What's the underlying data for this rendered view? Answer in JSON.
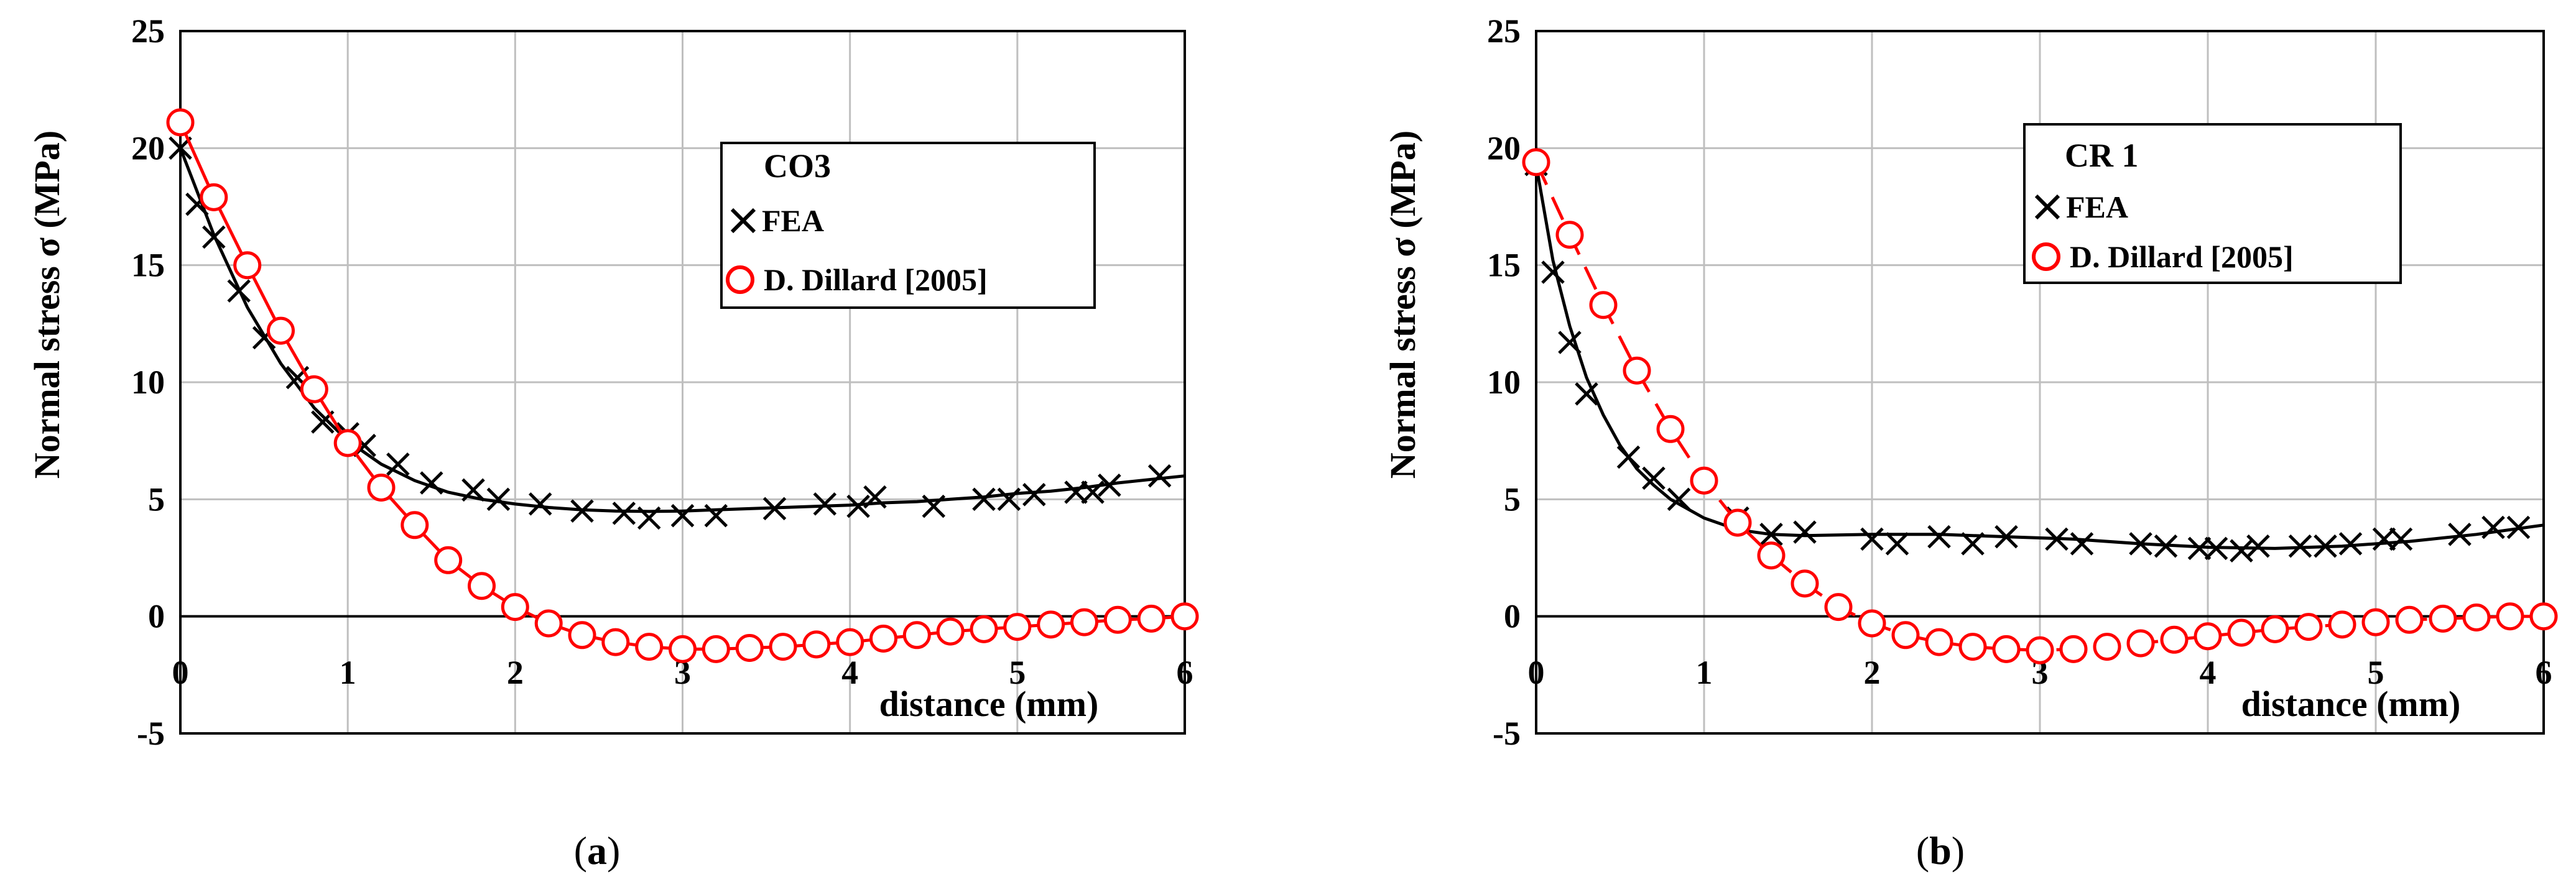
{
  "chart_data": [
    {
      "type": "line",
      "panel": "a",
      "caption_open": "(",
      "caption_letter": "a",
      "caption_close": ")",
      "legend_title": "CO3",
      "xlabel": "distance (mm)",
      "ylabel": "Normal stress σ (MPa)",
      "xlim": [
        0,
        6
      ],
      "ylim": [
        -5,
        25
      ],
      "x_ticks": [
        "0",
        "1",
        "2",
        "3",
        "4",
        "5",
        "6"
      ],
      "y_ticks": [
        "-5",
        "0",
        "5",
        "10",
        "15",
        "20",
        "25"
      ],
      "colors": {
        "fea": "#000000",
        "dillard": "#ff0000"
      },
      "series": [
        {
          "name": "FEA",
          "marker": "x",
          "points": [
            [
              0,
              20
            ],
            [
              0.1,
              17.6
            ],
            [
              0.2,
              16.2
            ],
            [
              0.35,
              13.9
            ],
            [
              0.5,
              11.9
            ],
            [
              0.7,
              10.2
            ],
            [
              0.85,
              8.3
            ],
            [
              1.0,
              7.8
            ],
            [
              1.1,
              7.3
            ],
            [
              1.3,
              6.5
            ],
            [
              1.5,
              5.7
            ],
            [
              1.75,
              5.4
            ],
            [
              1.9,
              5.0
            ],
            [
              2.15,
              4.8
            ],
            [
              2.4,
              4.5
            ],
            [
              2.65,
              4.4
            ],
            [
              2.8,
              4.2
            ],
            [
              3.0,
              4.3
            ],
            [
              3.2,
              4.3
            ],
            [
              3.55,
              4.6
            ],
            [
              3.85,
              4.8
            ],
            [
              4.05,
              4.7
            ],
            [
              4.15,
              5.1
            ],
            [
              4.5,
              4.7
            ],
            [
              4.8,
              5.0
            ],
            [
              4.95,
              5.0
            ],
            [
              5.1,
              5.2
            ],
            [
              5.35,
              5.3
            ],
            [
              5.45,
              5.3
            ],
            [
              5.55,
              5.6
            ],
            [
              5.85,
              6.0
            ]
          ],
          "curve": [
            [
              0,
              20
            ],
            [
              0.2,
              16.3
            ],
            [
              0.4,
              13.2
            ],
            [
              0.6,
              10.8
            ],
            [
              0.8,
              8.9
            ],
            [
              1.0,
              7.5
            ],
            [
              1.2,
              6.5
            ],
            [
              1.4,
              5.8
            ],
            [
              1.6,
              5.3
            ],
            [
              1.8,
              5.0
            ],
            [
              2.0,
              4.8
            ],
            [
              2.2,
              4.65
            ],
            [
              2.4,
              4.55
            ],
            [
              2.6,
              4.5
            ],
            [
              2.8,
              4.48
            ],
            [
              3.0,
              4.5
            ],
            [
              3.2,
              4.55
            ],
            [
              3.4,
              4.6
            ],
            [
              3.6,
              4.65
            ],
            [
              3.8,
              4.7
            ],
            [
              4.0,
              4.75
            ],
            [
              4.2,
              4.85
            ],
            [
              4.4,
              4.9
            ],
            [
              4.6,
              5.0
            ],
            [
              4.8,
              5.1
            ],
            [
              5.0,
              5.25
            ],
            [
              5.2,
              5.35
            ],
            [
              5.4,
              5.5
            ],
            [
              5.6,
              5.7
            ],
            [
              5.8,
              5.85
            ],
            [
              6.0,
              6.0
            ]
          ]
        },
        {
          "name": "D. Dillard [2005]",
          "marker": "o",
          "points": [
            [
              0,
              21.1
            ],
            [
              0.2,
              17.9
            ],
            [
              0.4,
              15.0
            ],
            [
              0.6,
              12.2
            ],
            [
              0.8,
              9.7
            ],
            [
              1.0,
              7.4
            ],
            [
              1.2,
              5.5
            ],
            [
              1.4,
              3.9
            ],
            [
              1.6,
              2.4
            ],
            [
              1.8,
              1.3
            ],
            [
              2.0,
              0.4
            ],
            [
              2.2,
              -0.3
            ],
            [
              2.4,
              -0.8
            ],
            [
              2.6,
              -1.1
            ],
            [
              2.8,
              -1.3
            ],
            [
              3.0,
              -1.4
            ],
            [
              3.2,
              -1.4
            ],
            [
              3.4,
              -1.35
            ],
            [
              3.6,
              -1.3
            ],
            [
              3.8,
              -1.2
            ],
            [
              4.0,
              -1.1
            ],
            [
              4.2,
              -0.95
            ],
            [
              4.4,
              -0.8
            ],
            [
              4.6,
              -0.65
            ],
            [
              4.8,
              -0.55
            ],
            [
              5.0,
              -0.45
            ],
            [
              5.2,
              -0.35
            ],
            [
              5.4,
              -0.25
            ],
            [
              5.6,
              -0.15
            ],
            [
              5.8,
              -0.1
            ],
            [
              6.0,
              0.0
            ]
          ],
          "curve": [
            [
              0,
              21.1
            ],
            [
              0.2,
              17.9
            ],
            [
              0.4,
              15.0
            ],
            [
              0.6,
              12.2
            ],
            [
              0.8,
              9.7
            ],
            [
              1.0,
              7.4
            ],
            [
              1.2,
              5.5
            ],
            [
              1.4,
              3.9
            ],
            [
              1.6,
              2.4
            ],
            [
              1.8,
              1.3
            ],
            [
              2.0,
              0.4
            ],
            [
              2.2,
              -0.3
            ],
            [
              2.4,
              -0.8
            ],
            [
              2.6,
              -1.1
            ],
            [
              2.8,
              -1.3
            ],
            [
              3.0,
              -1.4
            ],
            [
              3.2,
              -1.4
            ],
            [
              3.4,
              -1.35
            ],
            [
              3.6,
              -1.3
            ],
            [
              3.8,
              -1.2
            ],
            [
              4.0,
              -1.1
            ],
            [
              4.2,
              -0.95
            ],
            [
              4.4,
              -0.8
            ],
            [
              4.6,
              -0.65
            ],
            [
              4.8,
              -0.55
            ],
            [
              5.0,
              -0.45
            ],
            [
              5.2,
              -0.35
            ],
            [
              5.4,
              -0.25
            ],
            [
              5.6,
              -0.15
            ],
            [
              5.8,
              -0.1
            ],
            [
              6.0,
              0.0
            ]
          ]
        }
      ]
    },
    {
      "type": "line",
      "panel": "b",
      "caption_open": "(",
      "caption_letter": "b",
      "caption_close": ")",
      "legend_title": "CR 1",
      "xlabel": "distance (mm)",
      "ylabel": "Normal stress σ (MPa)",
      "xlim": [
        0,
        6
      ],
      "ylim": [
        -5,
        25
      ],
      "x_ticks": [
        "0",
        "1",
        "2",
        "3",
        "4",
        "5",
        "6"
      ],
      "y_ticks": [
        "-5",
        "0",
        "5",
        "10",
        "15",
        "20",
        "25"
      ],
      "colors": {
        "fea": "#000000",
        "dillard": "#ff0000"
      },
      "series": [
        {
          "name": "FEA",
          "marker": "x",
          "points": [
            [
              0,
              19.3
            ],
            [
              0.1,
              14.7
            ],
            [
              0.2,
              11.7
            ],
            [
              0.3,
              9.5
            ],
            [
              0.55,
              6.8
            ],
            [
              0.7,
              5.9
            ],
            [
              0.85,
              5.0
            ],
            [
              1.2,
              4.2
            ],
            [
              1.4,
              3.5
            ],
            [
              1.6,
              3.6
            ],
            [
              2.0,
              3.3
            ],
            [
              2.15,
              3.1
            ],
            [
              2.4,
              3.4
            ],
            [
              2.6,
              3.1
            ],
            [
              2.8,
              3.4
            ],
            [
              3.1,
              3.3
            ],
            [
              3.25,
              3.1
            ],
            [
              3.6,
              3.1
            ],
            [
              3.75,
              3.0
            ],
            [
              3.95,
              2.9
            ],
            [
              4.05,
              2.9
            ],
            [
              4.2,
              2.8
            ],
            [
              4.3,
              3.0
            ],
            [
              4.55,
              3.0
            ],
            [
              4.7,
              3.0
            ],
            [
              4.85,
              3.1
            ],
            [
              5.05,
              3.3
            ],
            [
              5.15,
              3.3
            ],
            [
              5.5,
              3.5
            ],
            [
              5.7,
              3.8
            ],
            [
              5.85,
              3.8
            ]
          ],
          "curve": [
            [
              0,
              19.3
            ],
            [
              0.1,
              15.2
            ],
            [
              0.2,
              12.4
            ],
            [
              0.3,
              10.2
            ],
            [
              0.4,
              8.6
            ],
            [
              0.5,
              7.3
            ],
            [
              0.6,
              6.3
            ],
            [
              0.7,
              5.6
            ],
            [
              0.8,
              5.0
            ],
            [
              0.9,
              4.6
            ],
            [
              1.0,
              4.2
            ],
            [
              1.2,
              3.7
            ],
            [
              1.4,
              3.5
            ],
            [
              1.6,
              3.45
            ],
            [
              2.0,
              3.5
            ],
            [
              2.4,
              3.5
            ],
            [
              2.8,
              3.4
            ],
            [
              3.2,
              3.3
            ],
            [
              3.6,
              3.1
            ],
            [
              4.0,
              2.95
            ],
            [
              4.4,
              2.9
            ],
            [
              4.8,
              3.0
            ],
            [
              5.2,
              3.2
            ],
            [
              5.6,
              3.5
            ],
            [
              6.0,
              3.9
            ]
          ]
        },
        {
          "name": "D. Dillard [2005]",
          "marker": "o",
          "points": [
            [
              0,
              19.4
            ],
            [
              0.2,
              16.3
            ],
            [
              0.4,
              13.3
            ],
            [
              0.6,
              10.5
            ],
            [
              0.8,
              8.0
            ],
            [
              1.0,
              5.8
            ],
            [
              1.2,
              4.0
            ],
            [
              1.4,
              2.6
            ],
            [
              1.6,
              1.4
            ],
            [
              1.8,
              0.4
            ],
            [
              2.0,
              -0.3
            ],
            [
              2.2,
              -0.8
            ],
            [
              2.4,
              -1.1
            ],
            [
              2.6,
              -1.3
            ],
            [
              2.8,
              -1.4
            ],
            [
              3.0,
              -1.45
            ],
            [
              3.2,
              -1.4
            ],
            [
              3.4,
              -1.3
            ],
            [
              3.6,
              -1.15
            ],
            [
              3.8,
              -1.0
            ],
            [
              4.0,
              -0.85
            ],
            [
              4.2,
              -0.7
            ],
            [
              4.4,
              -0.55
            ],
            [
              4.6,
              -0.45
            ],
            [
              4.8,
              -0.35
            ],
            [
              5.0,
              -0.25
            ],
            [
              5.2,
              -0.15
            ],
            [
              5.4,
              -0.1
            ],
            [
              5.6,
              -0.05
            ],
            [
              5.8,
              0.0
            ],
            [
              6.0,
              0.0
            ]
          ],
          "curve": [
            [
              0,
              19.4
            ],
            [
              0.2,
              16.3
            ],
            [
              0.4,
              13.3
            ],
            [
              0.6,
              10.5
            ],
            [
              0.8,
              8.0
            ],
            [
              1.0,
              5.8
            ],
            [
              1.2,
              4.0
            ],
            [
              1.4,
              2.6
            ],
            [
              1.6,
              1.4
            ],
            [
              1.8,
              0.4
            ],
            [
              2.0,
              -0.3
            ],
            [
              2.2,
              -0.8
            ],
            [
              2.4,
              -1.1
            ],
            [
              2.6,
              -1.3
            ],
            [
              2.8,
              -1.4
            ],
            [
              3.0,
              -1.45
            ],
            [
              3.2,
              -1.4
            ],
            [
              3.4,
              -1.3
            ],
            [
              3.6,
              -1.15
            ],
            [
              3.8,
              -1.0
            ],
            [
              4.0,
              -0.85
            ],
            [
              4.2,
              -0.7
            ],
            [
              4.4,
              -0.55
            ],
            [
              4.6,
              -0.45
            ],
            [
              4.8,
              -0.35
            ],
            [
              5.0,
              -0.25
            ],
            [
              5.2,
              -0.15
            ],
            [
              5.4,
              -0.1
            ],
            [
              5.6,
              -0.05
            ],
            [
              5.8,
              0.0
            ],
            [
              6.0,
              0.0
            ]
          ]
        }
      ]
    }
  ]
}
